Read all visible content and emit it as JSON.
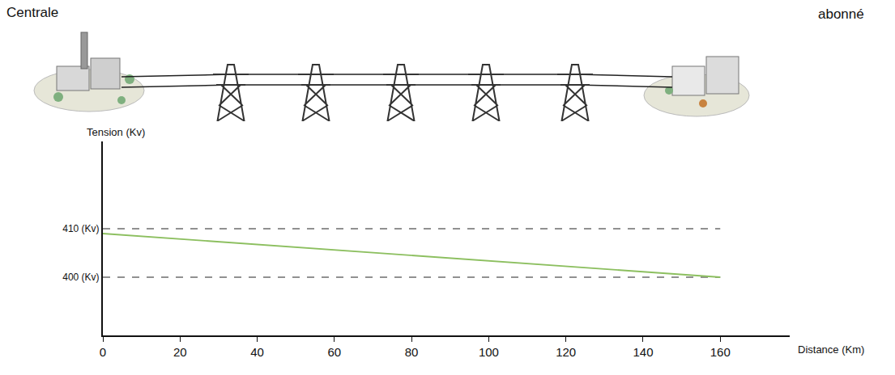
{
  "labels": {
    "source": "Centrale",
    "destination": "abonné"
  },
  "chart_data": {
    "type": "line",
    "x": [
      0,
      160
    ],
    "values": [
      409,
      400
    ],
    "color": "#8cbf5f",
    "x_label": "Distance (Km)",
    "y_label": "Tension (Kv)",
    "xlim": [
      0,
      178
    ],
    "xticks": [
      0,
      20,
      40,
      60,
      80,
      100,
      120,
      140,
      160
    ],
    "ylim": [
      388,
      428
    ],
    "yticks": [
      {
        "value": 400,
        "label": "400 (Kv)"
      },
      {
        "value": 410,
        "label": "410 (Kv)"
      }
    ],
    "grid": true
  }
}
